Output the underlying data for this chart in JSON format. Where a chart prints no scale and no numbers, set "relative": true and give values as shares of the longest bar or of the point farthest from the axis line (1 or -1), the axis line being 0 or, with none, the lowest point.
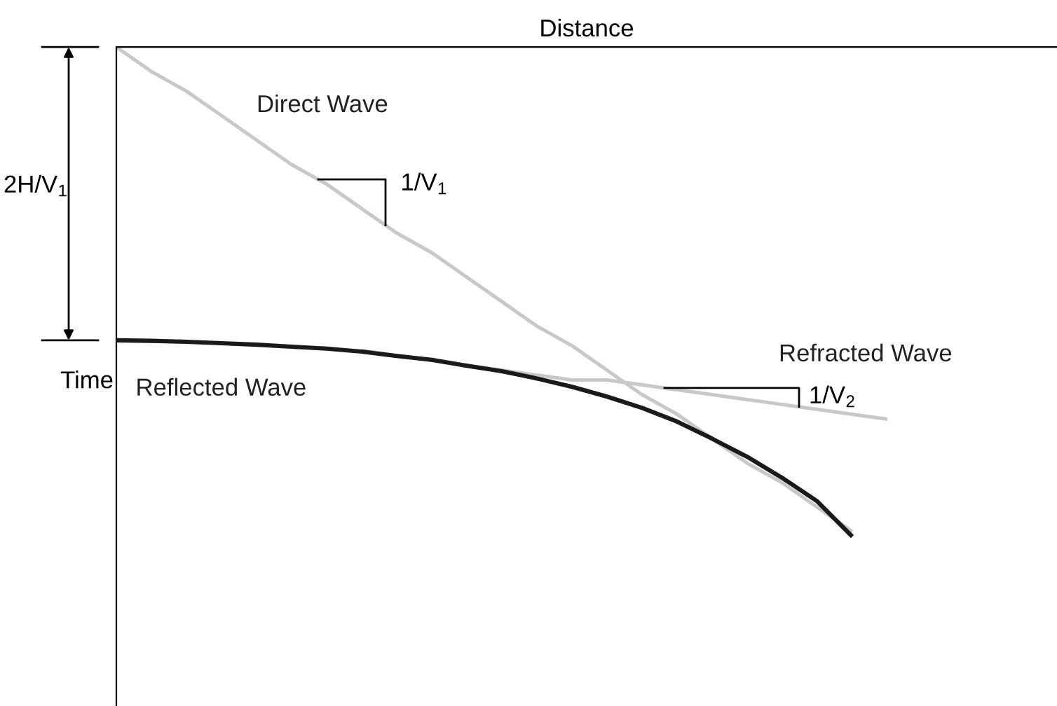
{
  "chart_data": {
    "type": "line",
    "relative": true,
    "xlabel": "Distance",
    "ylabel": "Time",
    "categories": [
      null,
      null,
      null,
      null,
      null,
      null,
      null,
      null,
      null,
      null,
      null,
      null,
      null,
      null,
      null,
      null,
      null,
      null,
      null,
      null,
      null,
      null,
      null
    ],
    "series": [
      {
        "name": "Direct Wave",
        "color": "#c8c8c8",
        "values": [
          0,
          -0.05,
          -0.09,
          -0.14,
          -0.19,
          -0.24,
          -0.28,
          -0.33,
          -0.38,
          -0.42,
          -0.47,
          -0.52,
          -0.57,
          -0.61,
          -0.66,
          -0.71,
          -0.75,
          -0.8,
          -0.85,
          -0.89,
          -0.94,
          -0.99,
          null
        ]
      },
      {
        "name": "Reflected Wave",
        "color": "#1a1a1a",
        "values": [
          -0.599,
          -0.6,
          -0.602,
          -0.605,
          -0.608,
          -0.612,
          -0.616,
          -0.622,
          -0.631,
          -0.639,
          -0.651,
          -0.662,
          -0.677,
          -0.694,
          -0.714,
          -0.737,
          -0.765,
          -0.8,
          -0.837,
          -0.88,
          -0.928,
          -1.0,
          null
        ]
      },
      {
        "name": "Refracted Wave",
        "color": "#c8c8c8",
        "values": [
          null,
          null,
          null,
          null,
          null,
          null,
          null,
          -0.62,
          -0.63,
          -0.64,
          -0.65,
          -0.66,
          -0.67,
          -0.68,
          -0.68,
          -0.69,
          -0.7,
          -0.71,
          -0.72,
          -0.73,
          -0.74,
          -0.75,
          -0.76
        ]
      }
    ],
    "annotations": [
      "2H/V$_{1}$",
      "1/V$_{1}$",
      "1/V$_{2}$"
    ],
    "grid": false,
    "legend": false
  }
}
